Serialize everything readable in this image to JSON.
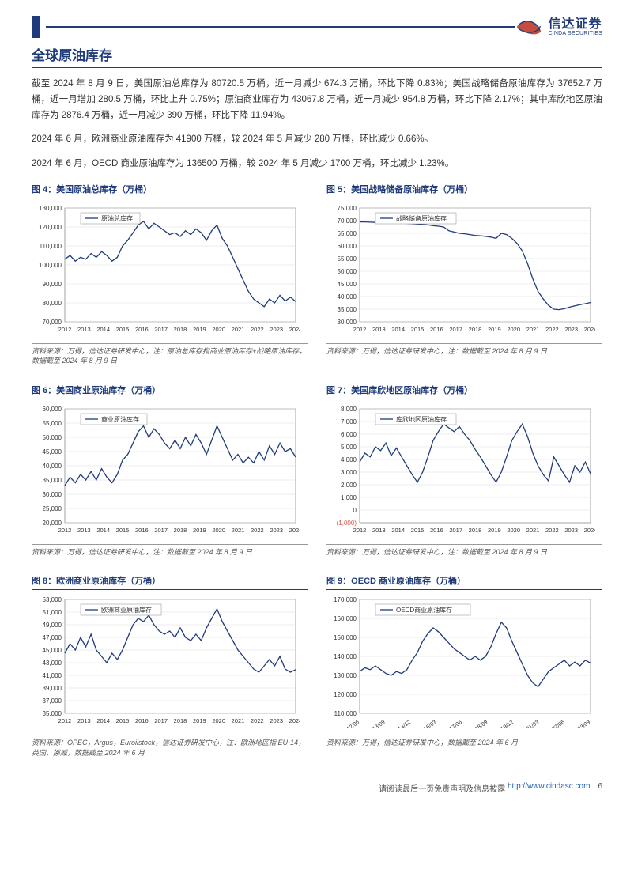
{
  "header": {
    "logo_cn": "信达证券",
    "logo_en": "CINDA SECURITIES"
  },
  "section_title": "全球原油库存",
  "paragraphs": [
    "截至 2024 年 8 月 9 日，美国原油总库存为 80720.5 万桶，近一月减少 674.3 万桶，环比下降 0.83%；美国战略储备原油库存为 37652.7 万桶，近一月增加 280.5 万桶，环比上升 0.75%；原油商业库存为 43067.8 万桶，近一月减少 954.8 万桶，环比下降 2.17%；其中库欣地区原油库存为 2876.4 万桶，近一月减少 390 万桶，环比下降 11.94%。",
    "2024 年 6 月，欧洲商业原油库存为 41900 万桶，较 2024 年 5 月减少 280 万桶，环比减少 0.66%。",
    "2024 年 6 月，OECD 商业原油库存为 136500 万桶，较 2024 年 5 月减少 1700 万桶，环比减少 1.23%。"
  ],
  "charts": {
    "c4": {
      "title": "图 4：美国原油总库存（万桶）",
      "legend": "原油总库存",
      "caption": "资料来源：万得，信达证券研发中心，注：原油总库存指商业原油库存+战略原油库存，数据截至 2024 年 8 月 9 日",
      "line_color": "#1f3b7a",
      "grid_color": "#d9d9d9",
      "text_color": "#333333",
      "bg": "#ffffff",
      "ylim": [
        70000,
        130000
      ],
      "ytick_step": 10000,
      "x_labels": [
        "2012",
        "2013",
        "2014",
        "2015",
        "2016",
        "2017",
        "2018",
        "2019",
        "2020",
        "2021",
        "2022",
        "2023",
        "2024"
      ],
      "values": [
        103000,
        105000,
        102000,
        104000,
        103000,
        106000,
        104000,
        107000,
        105000,
        102000,
        104000,
        110000,
        113000,
        117000,
        121000,
        123000,
        119000,
        122000,
        120000,
        118000,
        116000,
        117000,
        115000,
        118000,
        116000,
        119000,
        117000,
        113000,
        118000,
        121000,
        114000,
        110000,
        104000,
        98000,
        92000,
        86000,
        82000,
        80000,
        78000,
        82000,
        80000,
        84000,
        81000,
        83000,
        80720
      ]
    },
    "c5": {
      "title": "图 5：美国战略储备原油库存（万桶）",
      "legend": "战略储备原油库存",
      "caption": "资料来源：万得，信达证券研发中心，注：数据截至 2024 年 8 月 9 日",
      "line_color": "#1f3b7a",
      "grid_color": "#d9d9d9",
      "text_color": "#333333",
      "bg": "#ffffff",
      "ylim": [
        30000,
        75000
      ],
      "ytick_step": 5000,
      "x_labels": [
        "2012",
        "2013",
        "2014",
        "2015",
        "2016",
        "2017",
        "2018",
        "2019",
        "2020",
        "2021",
        "2022",
        "2023",
        "2024"
      ],
      "values": [
        69500,
        69500,
        69400,
        69300,
        69200,
        69200,
        69100,
        69000,
        69000,
        68900,
        68800,
        68700,
        68500,
        68300,
        68000,
        67800,
        67500,
        66000,
        65500,
        65000,
        64800,
        64500,
        64200,
        64000,
        63800,
        63500,
        63000,
        65000,
        64500,
        63000,
        61000,
        58000,
        53000,
        47000,
        42000,
        39000,
        36500,
        35000,
        34800,
        35200,
        35800,
        36300,
        36800,
        37200,
        37653
      ]
    },
    "c6": {
      "title": "图 6：美国商业原油库存（万桶）",
      "legend": "商业原油库存",
      "caption": "资料来源：万得，信达证券研发中心，注：数据截至 2024 年 8 月 9 日",
      "line_color": "#1f3b7a",
      "grid_color": "#d9d9d9",
      "text_color": "#333333",
      "bg": "#ffffff",
      "ylim": [
        20000,
        60000
      ],
      "ytick_step": 5000,
      "x_labels": [
        "2012",
        "2013",
        "2014",
        "2015",
        "2016",
        "2017",
        "2018",
        "2019",
        "2020",
        "2021",
        "2022",
        "2023",
        "2024"
      ],
      "values": [
        33000,
        36000,
        34000,
        37000,
        35000,
        38000,
        35000,
        39000,
        36000,
        34000,
        37000,
        42000,
        44000,
        48000,
        52000,
        54000,
        50000,
        53000,
        51000,
        48000,
        46000,
        49000,
        46000,
        50000,
        47000,
        51000,
        48000,
        44000,
        49000,
        54000,
        50000,
        46000,
        42000,
        44000,
        41000,
        43000,
        41000,
        45000,
        42000,
        47000,
        44000,
        48000,
        45000,
        46000,
        43068
      ]
    },
    "c7": {
      "title": "图 7：美国库欣地区原油库存（万桶）",
      "legend": "库欣地区原油库存",
      "caption": "资料来源：万得，信达证券研发中心，注：数据截至 2024 年 8 月 9 日",
      "line_color": "#1f3b7a",
      "grid_color": "#d9d9d9",
      "text_color": "#333333",
      "neg_label_color": "#d9534f",
      "bg": "#ffffff",
      "ylim": [
        -1000,
        8000
      ],
      "yticks": [
        0,
        1000,
        2000,
        3000,
        4000,
        5000,
        6000,
        7000,
        8000
      ],
      "neg_tick": "(1,000)",
      "x_labels": [
        "2012",
        "2013",
        "2014",
        "2015",
        "2016",
        "2017",
        "2018",
        "2019",
        "2020",
        "2021",
        "2022",
        "2023",
        "2024"
      ],
      "values": [
        3800,
        4500,
        4200,
        5000,
        4700,
        5300,
        4300,
        4900,
        4200,
        3500,
        2800,
        2200,
        3000,
        4200,
        5500,
        6200,
        6800,
        6500,
        6200,
        6600,
        6000,
        5500,
        4800,
        4200,
        3500,
        2800,
        2200,
        3000,
        4200,
        5500,
        6200,
        6800,
        5800,
        4500,
        3500,
        2800,
        2300,
        4200,
        3500,
        2800,
        2200,
        3500,
        3000,
        3800,
        2876
      ]
    },
    "c8": {
      "title": "图 8：欧洲商业原油库存（万桶）",
      "legend": "欧洲商业原油库存",
      "caption": "资料来源：OPEC，Argus，Euroilstock，信达证券研发中心，注：欧洲地区指 EU-14，英国，挪威，数据截至 2024 年 6 月",
      "line_color": "#1f3b7a",
      "grid_color": "#d9d9d9",
      "text_color": "#333333",
      "bg": "#ffffff",
      "ylim": [
        35000,
        53000
      ],
      "ytick_step": 2000,
      "x_labels": [
        "2012",
        "2013",
        "2014",
        "2015",
        "2016",
        "2017",
        "2018",
        "2019",
        "2020",
        "2021",
        "2022",
        "2023",
        "2024"
      ],
      "values": [
        44500,
        46000,
        45000,
        47000,
        45500,
        47500,
        45000,
        44000,
        43000,
        44500,
        43500,
        45000,
        47000,
        49000,
        50000,
        49500,
        50500,
        49000,
        48000,
        47500,
        48000,
        47000,
        48500,
        47000,
        46500,
        47500,
        46500,
        48500,
        50000,
        51500,
        49500,
        48000,
        46500,
        45000,
        44000,
        43000,
        42000,
        41500,
        42500,
        43500,
        42500,
        44000,
        42000,
        41500,
        41900
      ]
    },
    "c9": {
      "title": "图 9：OECD 商业原油库存（万桶）",
      "legend": "OECD商业原油库存",
      "caption": "资料来源：万得，信达证券研发中心，数据截至 2024 年 6 月",
      "line_color": "#1f3b7a",
      "grid_color": "#d9d9d9",
      "text_color": "#333333",
      "bg": "#ffffff",
      "ylim": [
        110000,
        170000
      ],
      "ytick_step": 10000,
      "x_labels": [
        "2012/06",
        "2013/09",
        "2014/12",
        "2016/03",
        "2017/06",
        "2018/09",
        "2019/12",
        "2021/03",
        "2022/06",
        "2023/09"
      ],
      "values": [
        132000,
        134000,
        133000,
        135000,
        133000,
        131000,
        130000,
        132000,
        131000,
        133000,
        138000,
        142000,
        148000,
        152000,
        155000,
        153000,
        150000,
        147000,
        144000,
        142000,
        140000,
        138000,
        140000,
        138000,
        140000,
        145000,
        152000,
        158000,
        155000,
        148000,
        142000,
        136000,
        130000,
        126000,
        124000,
        128000,
        132000,
        134000,
        136000,
        138000,
        135000,
        137000,
        135000,
        138000,
        136500
      ]
    }
  },
  "footer": {
    "text": "请阅读最后一页免责声明及信息披露",
    "url_label": "http://www.cindasc.com",
    "page_num": "6"
  }
}
